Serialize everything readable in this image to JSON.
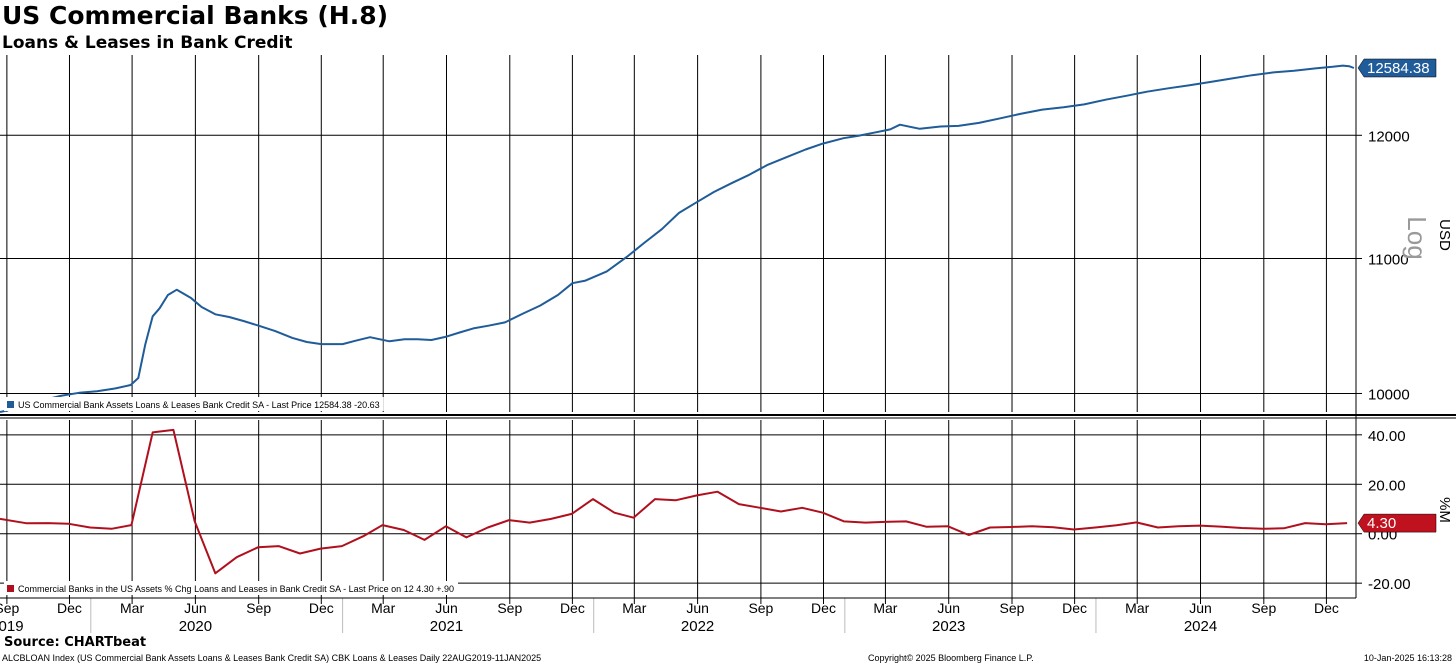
{
  "header": {
    "title": "US Commercial Banks (H.8)",
    "subtitle": "Loans & Leases in Bank Credit"
  },
  "footer": {
    "source": "Source: CHARTbeat",
    "index_description": "ALCBLOAN Index (US Commercial Bank Assets Loans & Leases Bank Credit SA) CBK Loans & Leases  Daily 22AUG2019-11JAN2025",
    "copyright": "Copyright© 2025 Bloomberg Finance L.P.",
    "timestamp": "10-Jan-2025 16:13:28"
  },
  "colors": {
    "upper_series": "#1f5c99",
    "lower_series": "#b0101e",
    "grid": "#000000",
    "background": "#ffffff"
  },
  "x_axis": {
    "months": [
      {
        "label": "Sep",
        "date": "2019-09-01"
      },
      {
        "label": "Dec",
        "date": "2019-12-01"
      },
      {
        "label": "Mar",
        "date": "2020-03-01"
      },
      {
        "label": "Jun",
        "date": "2020-06-01"
      },
      {
        "label": "Sep",
        "date": "2020-09-01"
      },
      {
        "label": "Dec",
        "date": "2020-12-01"
      },
      {
        "label": "Mar",
        "date": "2021-03-01"
      },
      {
        "label": "Jun",
        "date": "2021-06-01"
      },
      {
        "label": "Sep",
        "date": "2021-09-01"
      },
      {
        "label": "Dec",
        "date": "2021-12-01"
      },
      {
        "label": "Mar",
        "date": "2022-03-01"
      },
      {
        "label": "Jun",
        "date": "2022-06-01"
      },
      {
        "label": "Sep",
        "date": "2022-09-01"
      },
      {
        "label": "Dec",
        "date": "2022-12-01"
      },
      {
        "label": "Mar",
        "date": "2023-03-01"
      },
      {
        "label": "Jun",
        "date": "2023-06-01"
      },
      {
        "label": "Sep",
        "date": "2023-09-01"
      },
      {
        "label": "Dec",
        "date": "2023-12-01"
      },
      {
        "label": "Mar",
        "date": "2024-03-01"
      },
      {
        "label": "Jun",
        "date": "2024-06-01"
      },
      {
        "label": "Sep",
        "date": "2024-09-01"
      },
      {
        "label": "Dec",
        "date": "2024-12-01"
      }
    ],
    "years": [
      {
        "label": "2019",
        "date": "2019-09-01"
      },
      {
        "label": "2020",
        "date": "2020-06-01"
      },
      {
        "label": "2021",
        "date": "2021-06-01"
      },
      {
        "label": "2022",
        "date": "2022-06-01"
      },
      {
        "label": "2023",
        "date": "2023-06-01"
      },
      {
        "label": "2024",
        "date": "2024-06-01"
      }
    ],
    "year_dividers": [
      "2020-01-01",
      "2021-01-01",
      "2022-01-01",
      "2023-01-01",
      "2024-01-01"
    ]
  },
  "chart_data": [
    {
      "type": "line",
      "scale": "log",
      "scale_label": "Log",
      "ylabel": "USD",
      "yticks": [
        10000,
        11000,
        12000
      ],
      "ylim": [
        9870,
        12700
      ],
      "grid": true,
      "last_value_label": "12584.38",
      "legend_text": "US Commercial Bank Assets Loans & Leases Bank Credit SA - Last Price 12584.38  -20.63",
      "series": [
        {
          "name": "US Commercial Bank Assets Loans & Leases Bank Credit SA",
          "color": "#1f5c99",
          "x": [
            "2019-08-22",
            "2019-09-10",
            "2019-10-01",
            "2019-10-25",
            "2019-11-20",
            "2019-12-15",
            "2020-01-10",
            "2020-02-05",
            "2020-02-28",
            "2020-03-10",
            "2020-03-20",
            "2020-03-31",
            "2020-04-10",
            "2020-04-22",
            "2020-05-05",
            "2020-05-15",
            "2020-05-25",
            "2020-06-10",
            "2020-06-30",
            "2020-07-20",
            "2020-08-10",
            "2020-09-01",
            "2020-09-25",
            "2020-10-20",
            "2020-11-10",
            "2020-12-01",
            "2021-01-01",
            "2021-01-20",
            "2021-02-10",
            "2021-03-10",
            "2021-04-01",
            "2021-04-20",
            "2021-05-10",
            "2021-06-01",
            "2021-06-20",
            "2021-07-10",
            "2021-08-01",
            "2021-08-25",
            "2021-09-20",
            "2021-10-15",
            "2021-11-10",
            "2021-12-01",
            "2021-12-20",
            "2022-01-20",
            "2022-02-20",
            "2022-03-15",
            "2022-04-10",
            "2022-05-05",
            "2022-06-01",
            "2022-06-25",
            "2022-07-20",
            "2022-08-15",
            "2022-09-10",
            "2022-10-10",
            "2022-11-05",
            "2022-11-30",
            "2022-12-30",
            "2023-01-20",
            "2023-02-15",
            "2023-03-08",
            "2023-03-22",
            "2023-04-20",
            "2023-05-20",
            "2023-06-15",
            "2023-07-15",
            "2023-08-15",
            "2023-09-15",
            "2023-10-15",
            "2023-11-15",
            "2023-12-15",
            "2024-01-15",
            "2024-02-15",
            "2024-03-15",
            "2024-04-15",
            "2024-05-15",
            "2024-06-15",
            "2024-07-15",
            "2024-08-15",
            "2024-09-15",
            "2024-10-15",
            "2024-11-15",
            "2024-12-10",
            "2024-12-25",
            "2025-01-03",
            "2025-01-10"
          ],
          "values": [
            9870,
            9890,
            9915,
            9955,
            9985,
            10005,
            10015,
            10035,
            10060,
            10110,
            10350,
            10560,
            10620,
            10720,
            10760,
            10730,
            10700,
            10630,
            10575,
            10555,
            10525,
            10490,
            10450,
            10400,
            10370,
            10355,
            10355,
            10380,
            10405,
            10375,
            10390,
            10390,
            10385,
            10410,
            10440,
            10470,
            10490,
            10515,
            10580,
            10640,
            10720,
            10810,
            10830,
            10900,
            11020,
            11120,
            11230,
            11360,
            11450,
            11530,
            11600,
            11670,
            11750,
            11820,
            11880,
            11930,
            11975,
            11995,
            12025,
            12050,
            12090,
            12055,
            12075,
            12080,
            12105,
            12145,
            12185,
            12220,
            12240,
            12265,
            12305,
            12340,
            12375,
            12405,
            12430,
            12460,
            12490,
            12520,
            12545,
            12560,
            12580,
            12595,
            12605,
            12600,
            12584
          ]
        }
      ]
    },
    {
      "type": "line",
      "ylabel": "%M",
      "yticks": [
        -20.0,
        0.0,
        20.0,
        40.0
      ],
      "ylim": [
        -26,
        46
      ],
      "grid": true,
      "last_value_label": "4.30",
      "legend_text": "Commercial Banks in the US Assets % Chg Loans and Leases in Bank Credit SA - Last Price on 12 4.30  +.90",
      "series": [
        {
          "name": "Commercial Banks in the US Assets % Chg Loans and Leases in Bank Credit SA",
          "color": "#b0101e",
          "x": [
            "2019-08-22",
            "2019-09-30",
            "2019-10-31",
            "2019-11-30",
            "2019-12-31",
            "2020-01-31",
            "2020-02-29",
            "2020-03-31",
            "2020-04-30",
            "2020-05-31",
            "2020-06-30",
            "2020-07-31",
            "2020-08-31",
            "2020-09-30",
            "2020-10-31",
            "2020-11-30",
            "2020-12-31",
            "2021-01-31",
            "2021-02-28",
            "2021-03-31",
            "2021-04-30",
            "2021-05-31",
            "2021-06-30",
            "2021-07-31",
            "2021-08-31",
            "2021-09-30",
            "2021-10-31",
            "2021-11-30",
            "2021-12-31",
            "2022-01-31",
            "2022-02-28",
            "2022-03-31",
            "2022-04-30",
            "2022-05-31",
            "2022-06-30",
            "2022-07-31",
            "2022-08-31",
            "2022-09-30",
            "2022-10-31",
            "2022-11-30",
            "2022-12-31",
            "2023-01-31",
            "2023-02-28",
            "2023-03-31",
            "2023-04-30",
            "2023-05-31",
            "2023-06-30",
            "2023-07-31",
            "2023-08-31",
            "2023-09-30",
            "2023-10-31",
            "2023-11-30",
            "2023-12-31",
            "2024-01-31",
            "2024-02-29",
            "2024-03-31",
            "2024-04-30",
            "2024-05-31",
            "2024-06-30",
            "2024-07-31",
            "2024-08-31",
            "2024-09-30",
            "2024-10-31",
            "2024-11-30",
            "2024-12-31"
          ],
          "values": [
            6.0,
            4.2,
            4.3,
            4.0,
            2.5,
            2.0,
            3.5,
            41.0,
            42.0,
            5.0,
            -16.0,
            -9.5,
            -5.5,
            -5.0,
            -8.0,
            -6.0,
            -5.0,
            -1.0,
            3.5,
            1.5,
            -2.5,
            3.0,
            -1.5,
            2.5,
            5.5,
            4.5,
            6.0,
            8.0,
            14.0,
            8.5,
            6.5,
            14.0,
            13.5,
            15.5,
            17.0,
            12.0,
            10.5,
            9.0,
            10.5,
            8.5,
            5.0,
            4.5,
            4.8,
            5.0,
            2.8,
            3.0,
            -0.5,
            2.5,
            2.7,
            3.0,
            2.6,
            1.7,
            2.5,
            3.4,
            4.6,
            2.5,
            3.0,
            3.3,
            2.9,
            2.3,
            2.0,
            2.2,
            4.3,
            3.8,
            4.3
          ]
        }
      ]
    }
  ]
}
